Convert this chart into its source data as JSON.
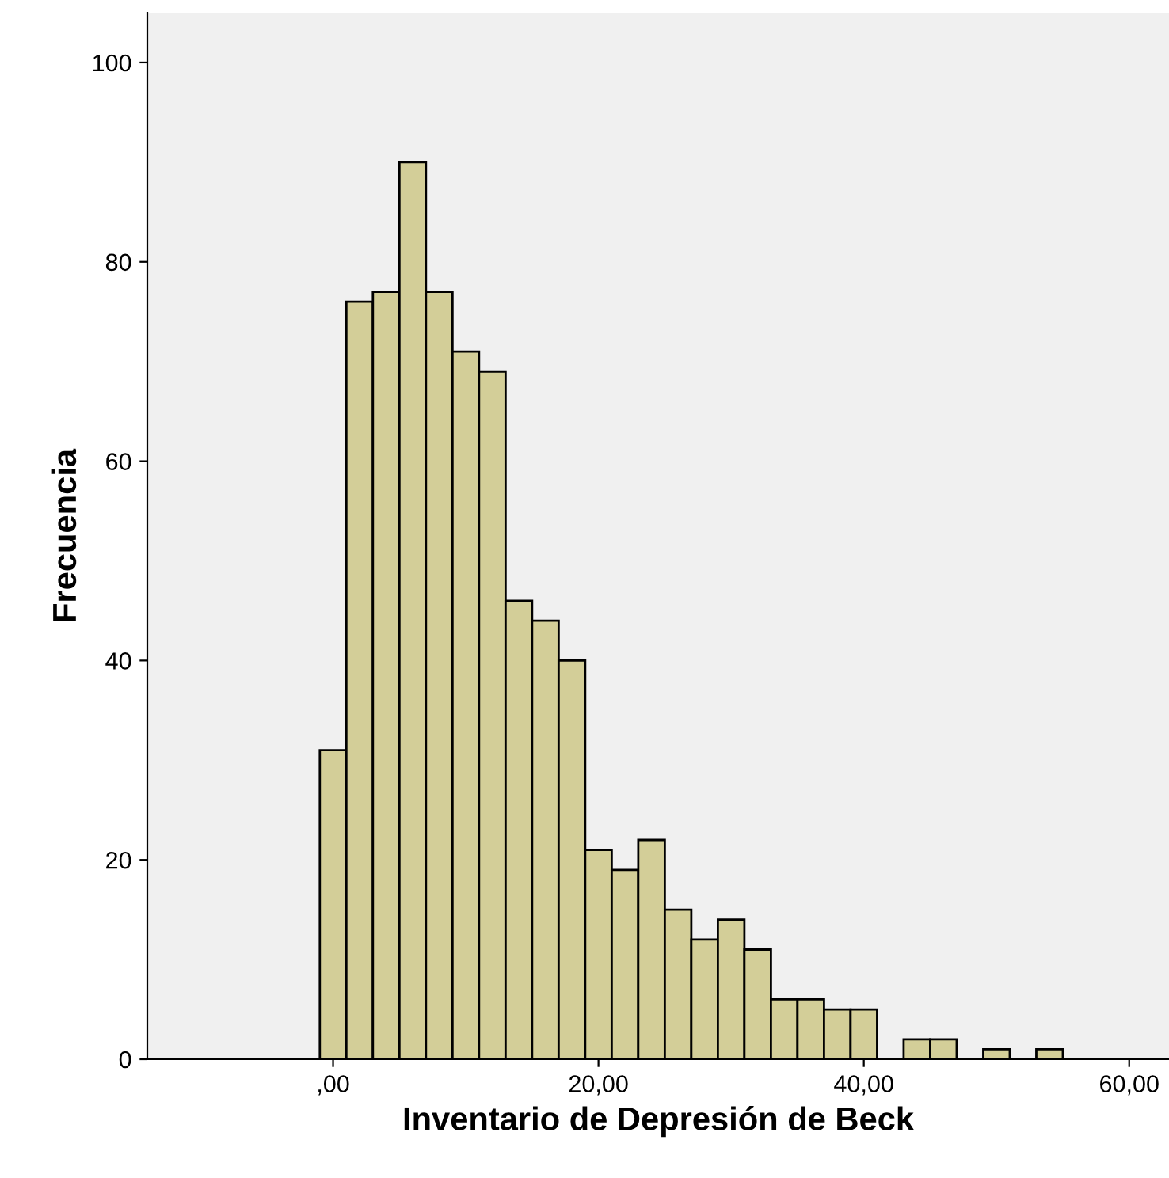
{
  "chart_data": {
    "type": "histogram",
    "xlabel": "Inventario de Depresión de Beck",
    "ylabel": "Frecuencia",
    "bins": [
      -1,
      1,
      3,
      5,
      7,
      9,
      11,
      13,
      15,
      17,
      19,
      21,
      23,
      25,
      27,
      29,
      31,
      33,
      35,
      37,
      39,
      41,
      43,
      45,
      47,
      49,
      51,
      53,
      55
    ],
    "values": [
      31,
      76,
      77,
      90,
      77,
      71,
      69,
      46,
      44,
      40,
      21,
      19,
      22,
      15,
      12,
      14,
      11,
      6,
      6,
      5,
      5,
      0,
      2,
      2,
      0,
      1,
      0,
      1
    ],
    "color": "#d3ce98",
    "xlim": [
      -14,
      63
    ],
    "xticks": [
      {
        "value": 0,
        "label": ",00"
      },
      {
        "value": 20,
        "label": "20,00"
      },
      {
        "value": 40,
        "label": "40,00"
      },
      {
        "value": 60,
        "label": "60,00"
      }
    ],
    "ylim": [
      0,
      105
    ],
    "yticks": [
      0,
      20,
      40,
      60,
      80,
      100
    ],
    "grid": false
  }
}
